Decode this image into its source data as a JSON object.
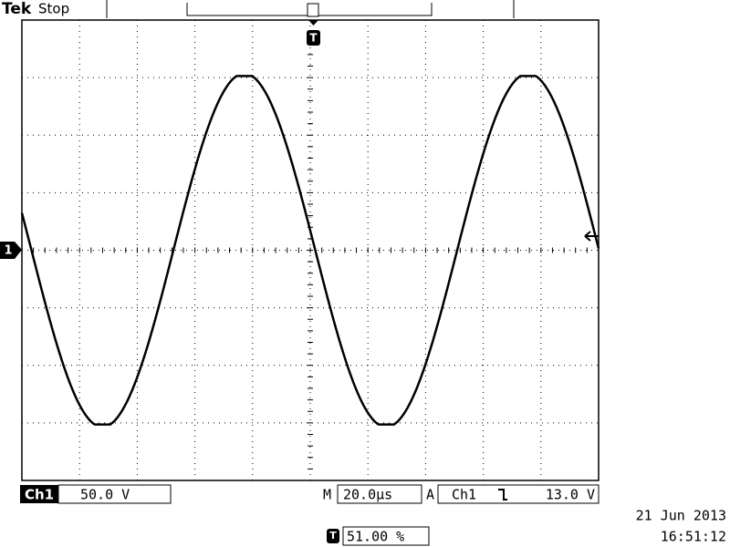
{
  "header": {
    "brand": "Tek",
    "status": "Stop"
  },
  "screen": {
    "channel_marker": "1"
  },
  "footer": {
    "channel": "Ch1",
    "volts_per_div": "50.0 V",
    "time_label": "M",
    "time_per_div": "20.0µs",
    "trigger_label": "A",
    "trigger_source": "Ch1",
    "trigger_level": "13.0 V",
    "trigger_position": "51.00 %",
    "date": "21 Jun  2013",
    "time": "16:51:12"
  }
}
